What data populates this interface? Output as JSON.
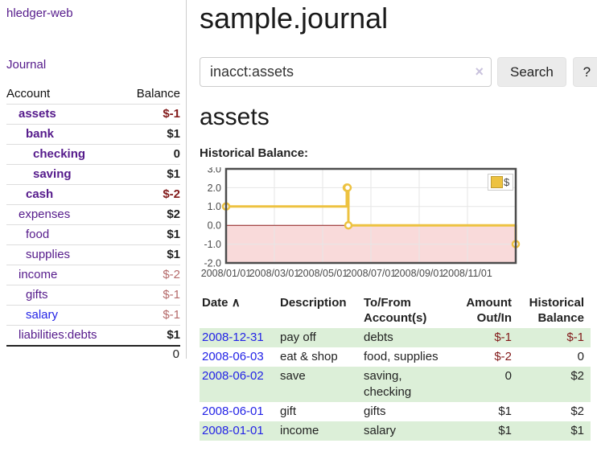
{
  "app": {
    "title": "hledger-web"
  },
  "sidebar": {
    "journal_link": "Journal",
    "accounts_header": {
      "account": "Account",
      "balance": "Balance"
    },
    "accounts": [
      {
        "label": "assets",
        "depth": 1,
        "emphasis": true,
        "balance": "$-1",
        "tone": "negative",
        "muted": false
      },
      {
        "label": "bank",
        "depth": 2,
        "emphasis": true,
        "balance": "$1",
        "tone": "normal",
        "muted": false
      },
      {
        "label": "checking",
        "depth": 3,
        "emphasis": true,
        "balance": "0",
        "tone": "normal",
        "muted": false
      },
      {
        "label": "saving",
        "depth": 3,
        "emphasis": true,
        "balance": "$1",
        "tone": "normal",
        "muted": false
      },
      {
        "label": "cash",
        "depth": 2,
        "emphasis": true,
        "balance": "$-2",
        "tone": "negative",
        "muted": false
      },
      {
        "label": "expenses",
        "depth": 1,
        "emphasis": false,
        "balance": "$2",
        "tone": "normal",
        "muted": false
      },
      {
        "label": "food",
        "depth": 2,
        "emphasis": false,
        "balance": "$1",
        "tone": "normal",
        "muted": false
      },
      {
        "label": "supplies",
        "depth": 2,
        "emphasis": false,
        "balance": "$1",
        "tone": "normal",
        "muted": false
      },
      {
        "label": "income",
        "depth": 1,
        "emphasis": false,
        "balance": "$-2",
        "tone": "negative-muted",
        "muted": true
      },
      {
        "label": "gifts",
        "depth": 2,
        "emphasis": false,
        "balance": "$-1",
        "tone": "negative-muted",
        "muted": true
      },
      {
        "label": "salary",
        "depth": 2,
        "emphasis": false,
        "balance": "$-1",
        "tone": "negative-muted",
        "muted": true,
        "link_tone": "blue"
      },
      {
        "label": "liabilities:debts",
        "depth": 1,
        "emphasis": false,
        "balance": "$1",
        "tone": "normal",
        "muted": false
      }
    ],
    "total": "0"
  },
  "main": {
    "title": "sample.journal",
    "search": {
      "value": "inacct:assets",
      "clear_icon": "×",
      "button_label": "Search",
      "help_label": "?"
    },
    "account_heading": "assets",
    "chart_title": "Historical Balance:"
  },
  "register": {
    "columns": [
      "Date",
      "Description",
      "To/From Account(s)",
      "Amount Out/In",
      "Historical Balance"
    ],
    "date_sort_icon": "∧",
    "rows": [
      {
        "date": "2008-12-31",
        "description": "pay off",
        "accounts": "debts",
        "amount": "$-1",
        "balance": "$-1"
      },
      {
        "date": "2008-06-03",
        "description": "eat & shop",
        "accounts": "food, supplies",
        "amount": "$-2",
        "balance": "0"
      },
      {
        "date": "2008-06-02",
        "description": "save",
        "accounts": "saving, checking",
        "amount": "0",
        "balance": "$2"
      },
      {
        "date": "2008-06-01",
        "description": "gift",
        "accounts": "gifts",
        "amount": "$1",
        "balance": "$2"
      },
      {
        "date": "2008-01-01",
        "description": "income",
        "accounts": "salary",
        "amount": "$1",
        "balance": "$1"
      }
    ]
  },
  "chart_data": {
    "type": "line",
    "title": "Historical Balance:",
    "step": true,
    "x": [
      "2008-01-01",
      "2008-06-01",
      "2008-06-02",
      "2008-06-03",
      "2008-12-31"
    ],
    "y": [
      1,
      2,
      2,
      0,
      -1
    ],
    "xlim": [
      "2008-01-01",
      "2009-01-01"
    ],
    "ylim": [
      -2,
      3
    ],
    "yticks": [
      "3.0",
      "2.0",
      "1.0",
      "0.0",
      "-1.0",
      "-2.0"
    ],
    "xticks": [
      "2008/01/01",
      "2008/03/01",
      "2008/05/01",
      "2008/07/01",
      "2008/09/01",
      "2008/11/01"
    ],
    "grid": true,
    "legend": [
      {
        "label": "$",
        "color": "#edc240"
      }
    ],
    "legend_position": "top-right",
    "series_color": "#edc240",
    "marker_fill": "#ffffff",
    "negative_region_fill": "#f9dada",
    "zero_line_color": "#8b1b1b",
    "border_color": "#4c4c4c",
    "gridline_color": "#e6e6e6",
    "tick_label_color": "#4a4a4a"
  }
}
